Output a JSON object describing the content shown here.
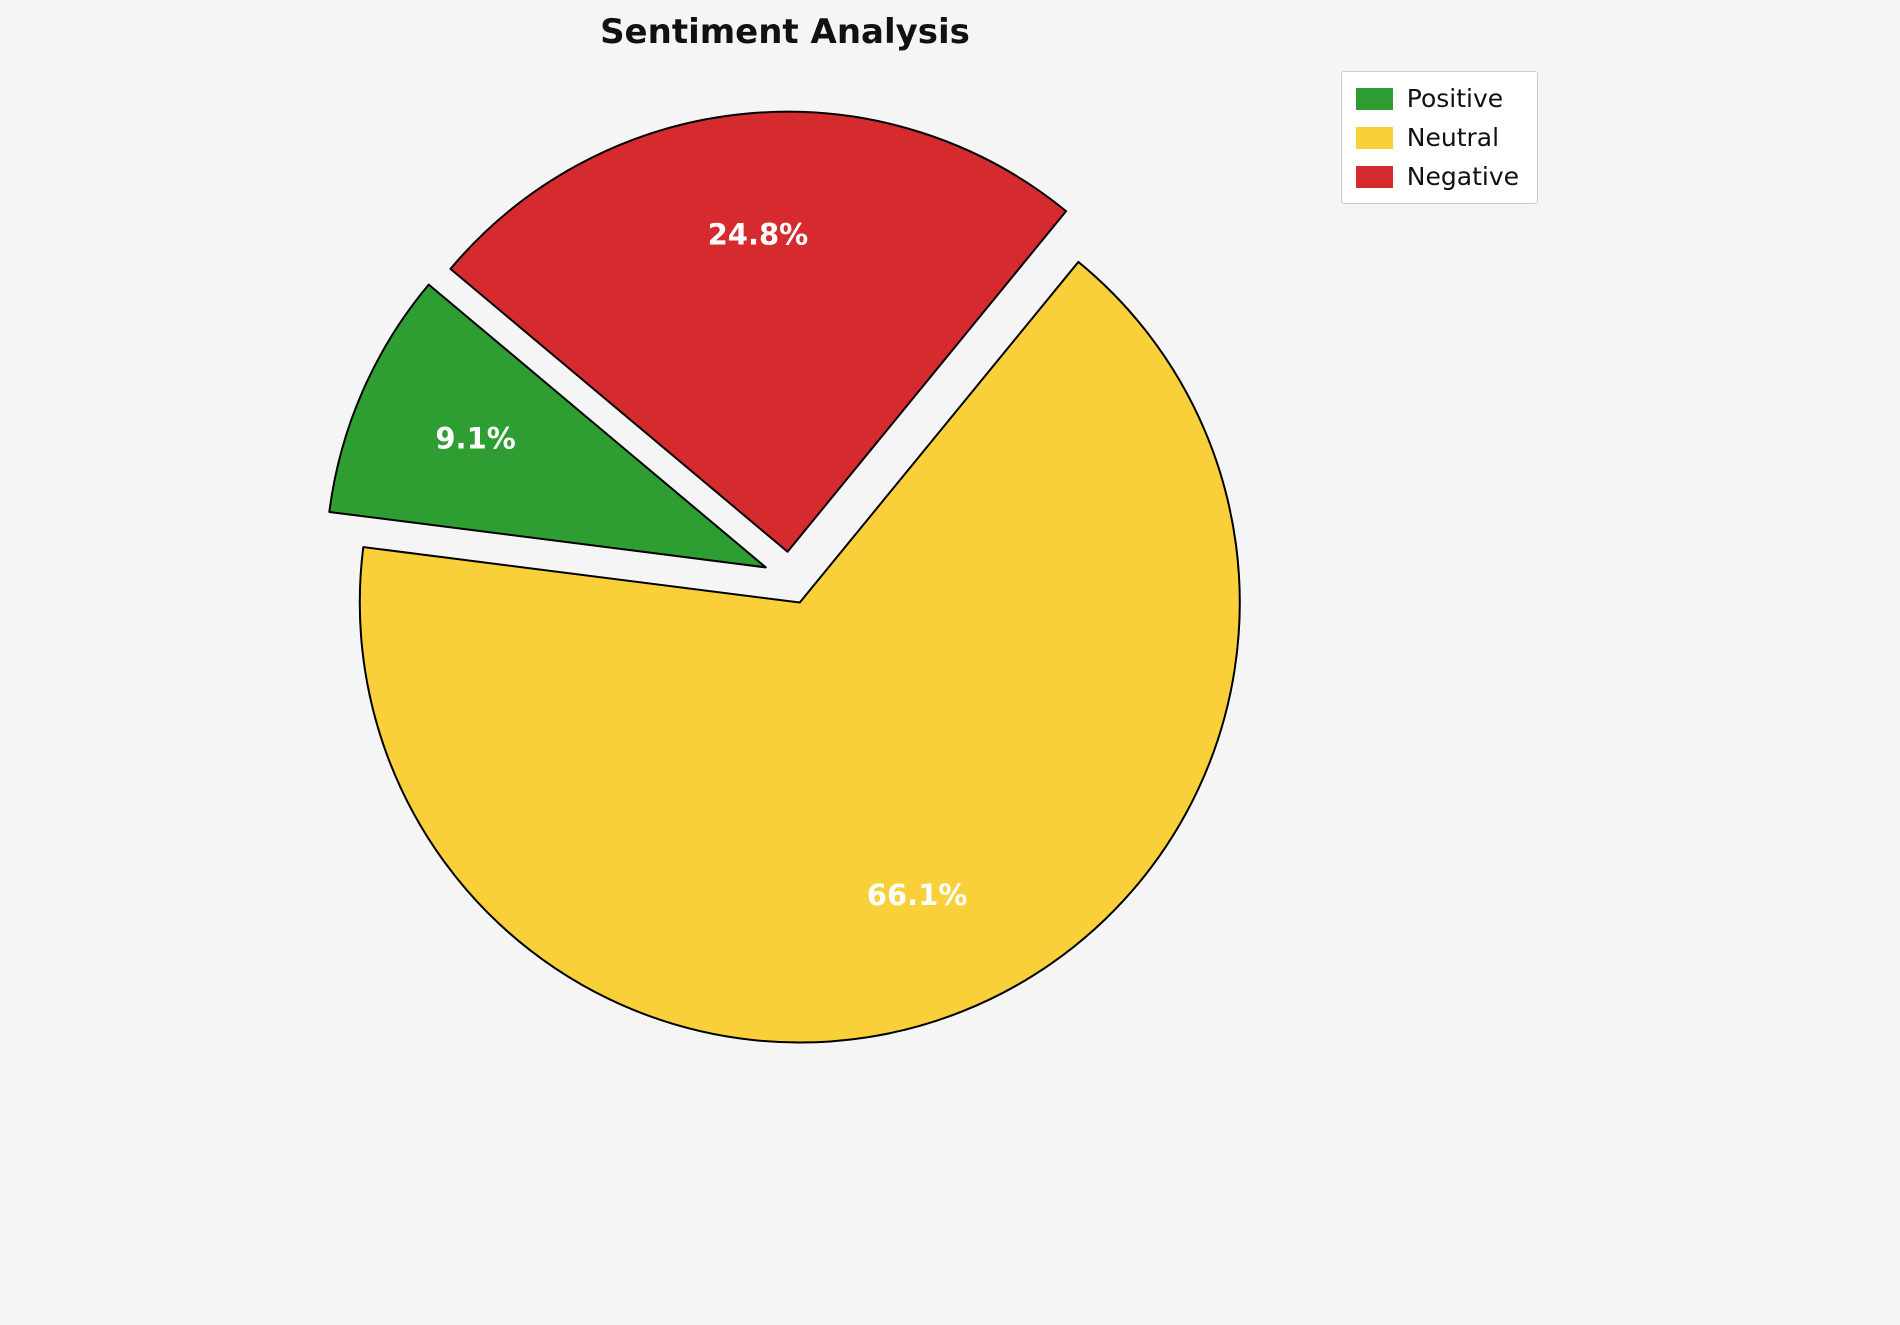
{
  "chart_data": {
    "type": "pie",
    "title": "Sentiment Analysis",
    "slices": [
      {
        "name": "Positive",
        "value": 9.1,
        "label": "9.1%",
        "color": "#2f9e32"
      },
      {
        "name": "Neutral",
        "value": 66.1,
        "label": "66.1%",
        "color": "#f9d03a"
      },
      {
        "name": "Negative",
        "value": 24.8,
        "label": "24.8%",
        "color": "#d62b2e"
      }
    ],
    "layout": {
      "start_angle": 140,
      "counterclockwise": true,
      "explode": 0.06,
      "label_distance": 0.72,
      "legend_position": "upper right",
      "slice_stroke": "#000000",
      "slice_stroke_width": 2,
      "label_color": "#ffffff",
      "background": "#f5f5f6"
    }
  }
}
